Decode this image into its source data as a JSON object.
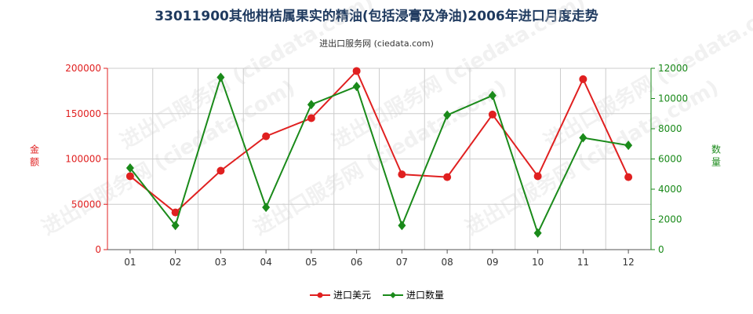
{
  "title": "33011900其他柑桔属果实的精油(包括浸膏及净油)2006年进口月度走势",
  "subtitle": "进出口服务网 (ciedata.com)",
  "watermark": "进出口服务网 (ciedata.com)",
  "chart_data": {
    "type": "line",
    "categories": [
      "01",
      "02",
      "03",
      "04",
      "05",
      "06",
      "07",
      "08",
      "09",
      "10",
      "11",
      "12"
    ],
    "series": [
      {
        "name": "进口美元",
        "axis": "left",
        "color": "#e02020",
        "marker": "circle",
        "values": [
          81000,
          41000,
          87000,
          125000,
          145000,
          197000,
          83000,
          80000,
          149000,
          81000,
          188000,
          80000
        ]
      },
      {
        "name": "进口数量",
        "axis": "right",
        "color": "#1a8a1a",
        "marker": "diamond",
        "values": [
          5400,
          1600,
          11400,
          2800,
          9600,
          10800,
          1600,
          8900,
          10200,
          1100,
          7400,
          6900
        ]
      }
    ],
    "y_left": {
      "label": "金额",
      "min": 0,
      "max": 200000,
      "ticks": [
        "0",
        "50000",
        "100000",
        "150000",
        "200000"
      ],
      "color": "#e02020"
    },
    "y_right": {
      "label": "数量",
      "min": 0,
      "max": 12000,
      "ticks": [
        "0",
        "2000",
        "4000",
        "6000",
        "8000",
        "10000",
        "12000"
      ],
      "color": "#1a8a1a"
    },
    "grid": true,
    "legend_position": "bottom"
  }
}
